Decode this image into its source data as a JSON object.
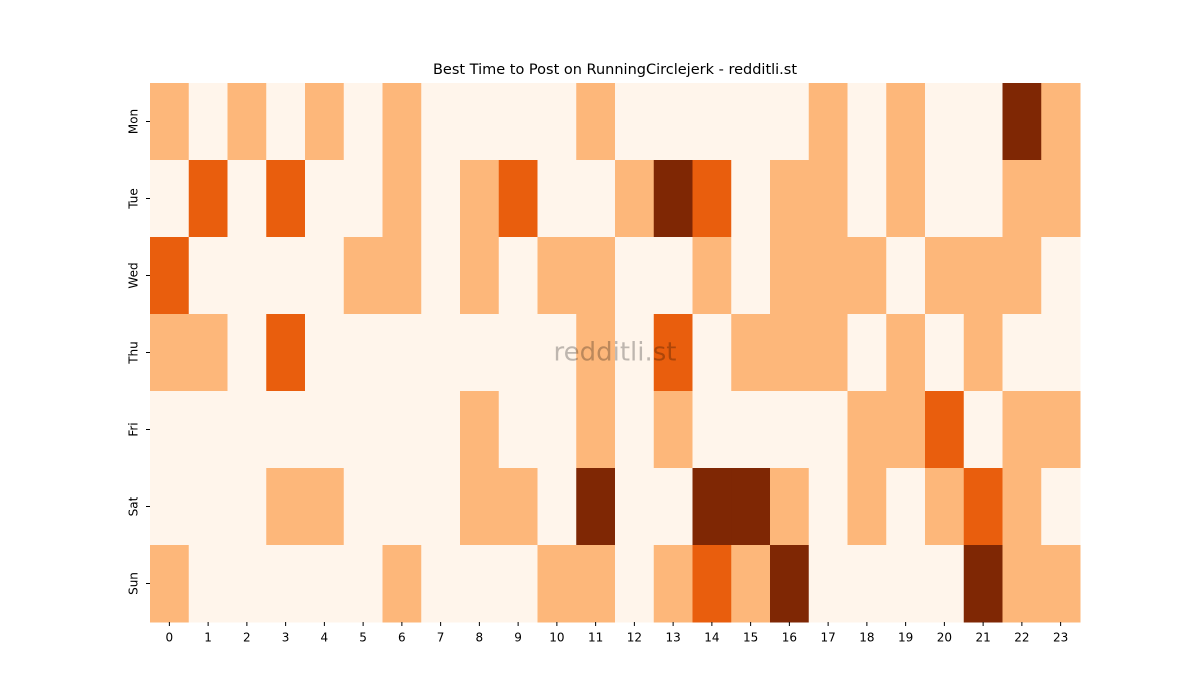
{
  "chart_data": {
    "type": "heatmap",
    "title": "Best Time to Post on RunningCirclejerk - redditli.st",
    "watermark": "redditli.st",
    "x": [
      0,
      1,
      2,
      3,
      4,
      5,
      6,
      7,
      8,
      9,
      10,
      11,
      12,
      13,
      14,
      15,
      16,
      17,
      18,
      19,
      20,
      21,
      22,
      23
    ],
    "y": [
      "Mon",
      "Tue",
      "Wed",
      "Thu",
      "Fri",
      "Sat",
      "Sun"
    ],
    "values": [
      [
        1,
        0,
        1,
        0,
        1,
        0,
        1,
        0,
        0,
        0,
        0,
        1,
        0,
        0,
        0,
        0,
        0,
        1,
        0,
        1,
        0,
        0,
        3,
        1
      ],
      [
        0,
        2,
        0,
        2,
        0,
        0,
        1,
        0,
        1,
        2,
        0,
        0,
        1,
        3,
        2,
        0,
        1,
        1,
        0,
        1,
        0,
        0,
        1,
        1
      ],
      [
        2,
        0,
        0,
        0,
        0,
        1,
        1,
        0,
        1,
        0,
        1,
        1,
        0,
        0,
        1,
        0,
        1,
        1,
        1,
        0,
        1,
        1,
        1,
        0
      ],
      [
        1,
        1,
        0,
        2,
        0,
        0,
        0,
        0,
        0,
        0,
        0,
        1,
        0,
        2,
        0,
        1,
        1,
        1,
        0,
        1,
        0,
        1,
        0,
        0
      ],
      [
        0,
        0,
        0,
        0,
        0,
        0,
        0,
        0,
        1,
        0,
        0,
        1,
        0,
        1,
        0,
        0,
        0,
        0,
        1,
        1,
        2,
        0,
        1,
        1
      ],
      [
        0,
        0,
        0,
        1,
        1,
        0,
        0,
        0,
        1,
        1,
        0,
        3,
        0,
        0,
        3,
        3,
        1,
        0,
        1,
        0,
        1,
        2,
        1,
        0
      ],
      [
        1,
        0,
        0,
        0,
        0,
        0,
        1,
        0,
        0,
        0,
        1,
        1,
        0,
        1,
        2,
        1,
        3,
        0,
        0,
        0,
        0,
        3,
        1,
        1
      ]
    ],
    "vlim": [
      0,
      3
    ],
    "colormap": [
      "#fff5eb",
      "#fdb77a",
      "#e95e0d",
      "#7f2704"
    ]
  }
}
